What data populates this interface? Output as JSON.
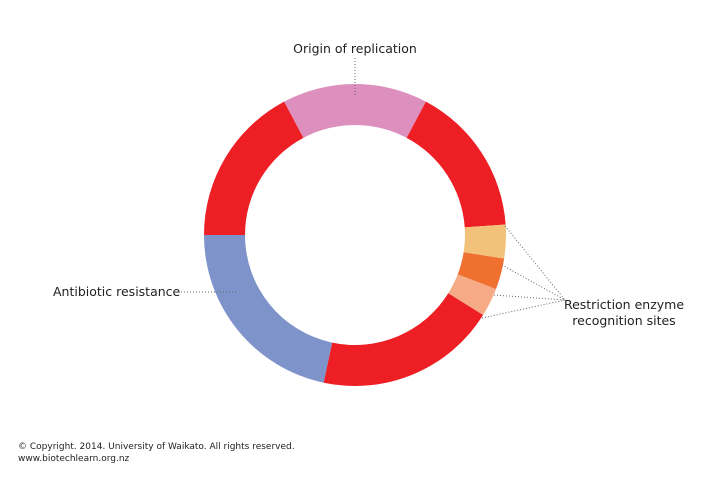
{
  "labels": {
    "origin": "Origin of replication",
    "antibiotic": "Antibiotic resistance",
    "restriction": [
      "Restriction enzyme",
      "recognition sites"
    ]
  },
  "footer": {
    "copyright": "© Copyright. 2014. University of Waikato. All rights reserved.",
    "url": "www.biotechlearn.org.nz"
  }
}
